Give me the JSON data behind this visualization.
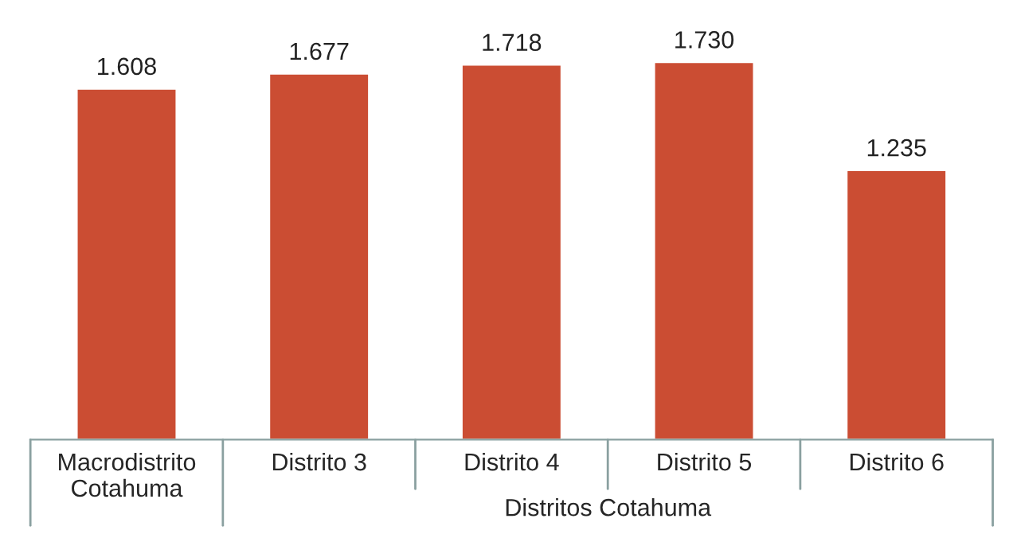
{
  "chart_data": {
    "type": "bar",
    "categories": [
      "Macrodistrito\nCotahuma",
      "Distrito 3",
      "Distrito 4",
      "Distrito 5",
      "Distrito 6"
    ],
    "values": [
      1.608,
      1.677,
      1.718,
      1.73,
      1.235
    ],
    "value_labels": [
      "1.608",
      "1.677",
      "1.718",
      "1.730",
      "1.235"
    ],
    "color": "#cb4d33",
    "annotations": [
      "Distritos Cotahuma"
    ],
    "grid": false,
    "legend": false
  }
}
